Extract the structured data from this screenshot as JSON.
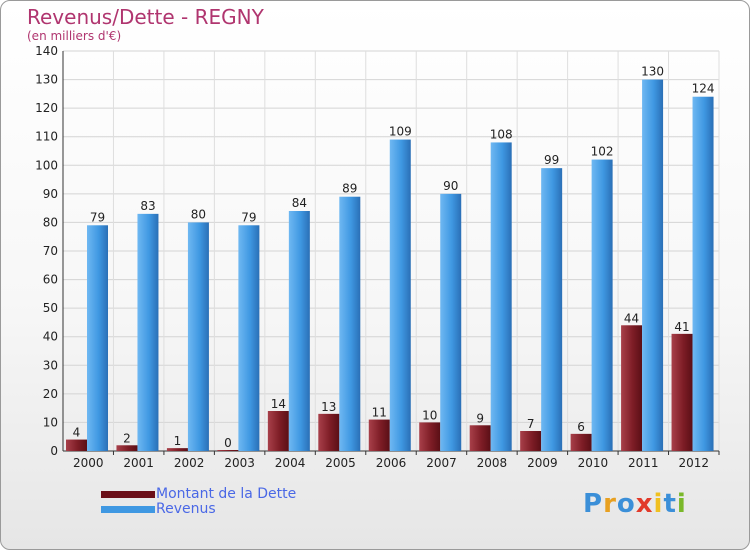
{
  "header": {
    "title": "Revenus/Dette - REGNY",
    "subtitle": "(en milliers d'€)"
  },
  "logo": {
    "text": [
      "P",
      "r",
      "o",
      "x",
      "i",
      "t",
      "i"
    ],
    "colors": [
      "#3b8fd8",
      "#e8a020",
      "#3b8fd8",
      "#e23a2a",
      "#f0c020",
      "#3b8fd8",
      "#7ab82a"
    ]
  },
  "colors": {
    "dette": "#7a1a22",
    "revenus": "#2e86d8"
  },
  "chart_data": {
    "type": "bar",
    "title": "Revenus/Dette - REGNY",
    "ylabel": "(en milliers d'€)",
    "xlabel": "",
    "categories": [
      "2000",
      "2001",
      "2002",
      "2003",
      "2004",
      "2005",
      "2006",
      "2007",
      "2008",
      "2009",
      "2010",
      "2011",
      "2012"
    ],
    "ylim": [
      0,
      140
    ],
    "yticks": [
      0,
      10,
      20,
      30,
      40,
      50,
      60,
      70,
      80,
      90,
      100,
      110,
      120,
      130,
      140
    ],
    "grid": true,
    "legend_position": "bottom-left",
    "series": [
      {
        "name": "Montant de la Dette",
        "values": [
          4,
          2,
          1,
          0,
          14,
          13,
          11,
          10,
          9,
          7,
          6,
          44,
          41
        ]
      },
      {
        "name": "Revenus",
        "values": [
          79,
          83,
          80,
          79,
          84,
          89,
          109,
          90,
          108,
          99,
          102,
          130,
          124
        ]
      }
    ]
  }
}
